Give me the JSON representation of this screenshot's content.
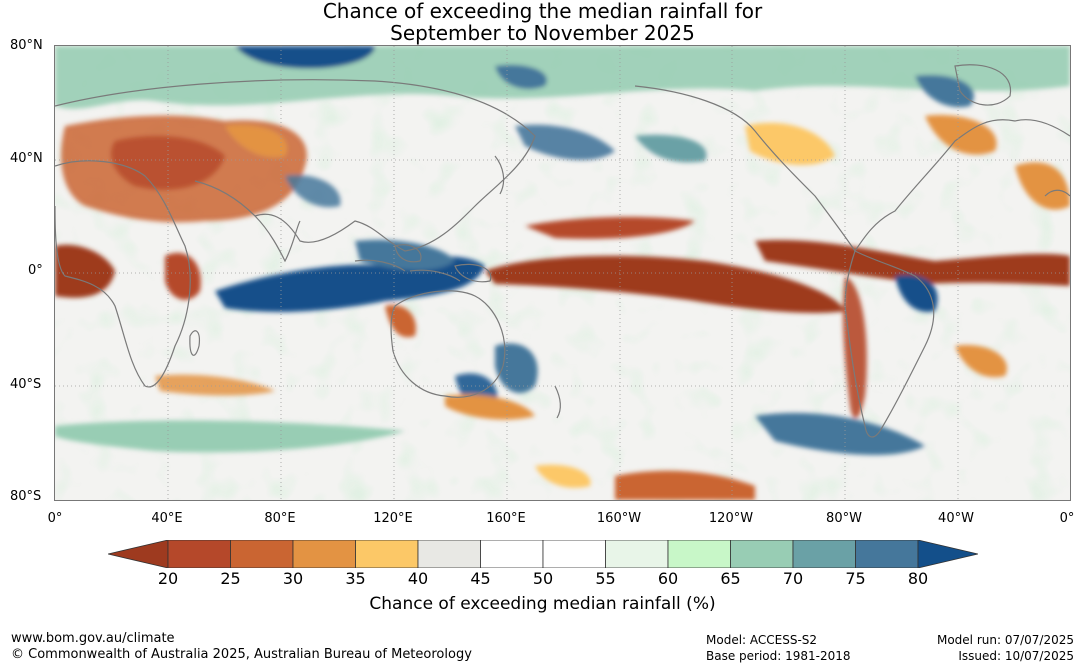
{
  "title_line1": "Chance of exceeding the median rainfall for",
  "title_line2": "September to November 2025",
  "lat_labels": [
    "80°N",
    "40°N",
    "0°",
    "40°S",
    "80°S"
  ],
  "lon_labels": [
    "0°",
    "40°E",
    "80°E",
    "120°E",
    "160°E",
    "160°W",
    "120°W",
    "80°W",
    "40°W",
    "0°"
  ],
  "colorbar": {
    "ticks": [
      "20",
      "25",
      "30",
      "35",
      "40",
      "45",
      "50",
      "55",
      "60",
      "65",
      "70",
      "75",
      "80"
    ],
    "colors": [
      "#9e3a1f",
      "#b5482a",
      "#ca6532",
      "#e39343",
      "#fcc867",
      "#e8e8e4",
      "#ffffff",
      "#ffffff",
      "#e8f5e8",
      "#c8f7c8",
      "#98cdb4",
      "#6aa1a6",
      "#45779b",
      "#134f8a"
    ],
    "title": "Chance of exceeding median rainfall (%)"
  },
  "footer": {
    "website": "www.bom.gov.au/climate",
    "copyright": "© Commonwealth of Australia 2025, Australian Bureau of Meteorology",
    "model": "Model: ACCESS-S2",
    "base_period": "Base period: 1981-2018",
    "model_run": "Model run: 07/07/2025",
    "issued": "Issued: 10/07/2025"
  }
}
